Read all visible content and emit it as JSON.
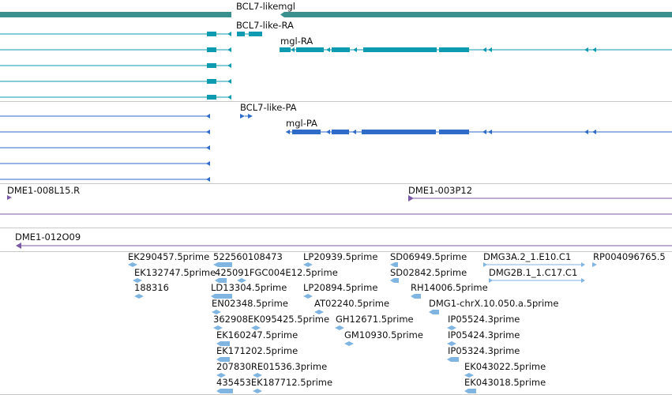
{
  "colors": {
    "gene": "#3a8f8f",
    "rna": "#0e9ab0",
    "protein": "#2f6bc9",
    "clone": "#7b5aa6",
    "est": "#7fb5e0",
    "separator": "#c9c9c9"
  },
  "tracks": {
    "gene": {
      "label": "BCL7-likemgl"
    },
    "transcripts": {
      "labels": [
        "BCL7-like-RA",
        "mgl-RA"
      ]
    },
    "proteins": {
      "labels": [
        "BCL7-like-PA",
        "mgl-PA"
      ]
    },
    "clones": {
      "labels": [
        "DME1-008L15.R",
        "DME1-003P12",
        "DME1-012O09"
      ]
    },
    "ests": {
      "labels": [
        "EK290457.5prime",
        "522560108473",
        "LP20939.5prime",
        "SD06949.5prime",
        "DMG3A.2_1.E10.C1",
        "RP004096765.5",
        "EK132747.5prime",
        "425091FGC004E12.5prime",
        "SD02842.5prime",
        "DMG2B.1_1.C17.C1",
        "188316",
        "LD13304.5prime",
        "LP20894.5prime",
        "RH14006.5prime",
        "EN02348.5prime",
        "AT02240.5prime",
        "DMG1-chrX.10.050.a.5prime",
        "362908EK095425.5prime",
        "GH12671.5prime",
        "IP05524.3prime",
        "EK160247.5prime",
        "GM10930.5prime",
        "IP05424.3prime",
        "EK171202.5prime",
        "IP05324.3prime",
        "207830RE01536.3prime",
        "EK043022.5prime",
        "435453EK187712.5prime",
        "EK043018.5prime"
      ]
    }
  }
}
